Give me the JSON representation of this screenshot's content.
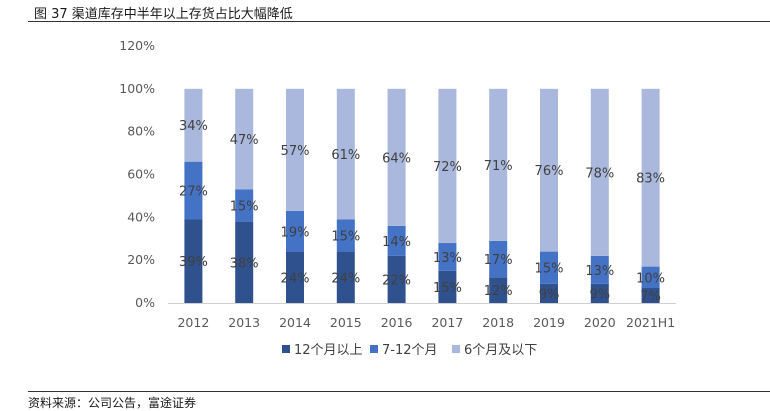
{
  "figure": {
    "title": "图 37 渠道库存中半年以上存货占比大幅降低",
    "source": "资料来源：公司公告，富途证券"
  },
  "chart_data": {
    "type": "bar",
    "stacked": true,
    "categories": [
      "2012",
      "2013",
      "2014",
      "2015",
      "2016",
      "2017",
      "2018",
      "2019",
      "2020",
      "2021H1"
    ],
    "ylim": [
      0,
      120
    ],
    "yticks": [
      "0%",
      "20%",
      "40%",
      "60%",
      "80%",
      "100%",
      "120%"
    ],
    "legend_position": "bottom",
    "grid": false,
    "series": [
      {
        "name": "12个月以上",
        "color": "#2f528f",
        "values": [
          39,
          38,
          24,
          24,
          22,
          15,
          12,
          9,
          9,
          7
        ],
        "labels": [
          "39%",
          "38%",
          "24%",
          "24%",
          "22%",
          "15%",
          "12%",
          "9%",
          "9%",
          "7%"
        ]
      },
      {
        "name": "7-12个月",
        "color": "#4472c4",
        "values": [
          27,
          15,
          19,
          15,
          14,
          13,
          17,
          15,
          13,
          10
        ],
        "labels": [
          "27%",
          "15%",
          "19%",
          "15%",
          "14%",
          "13%",
          "17%",
          "15%",
          "13%",
          "10%"
        ]
      },
      {
        "name": "6个月及以下",
        "color": "#a9b8dc",
        "values": [
          34,
          47,
          57,
          61,
          64,
          72,
          71,
          76,
          78,
          83
        ],
        "labels": [
          "34%",
          "47%",
          "57%",
          "61%",
          "64%",
          "72%",
          "71%",
          "76%",
          "78%",
          "83%"
        ]
      }
    ]
  }
}
